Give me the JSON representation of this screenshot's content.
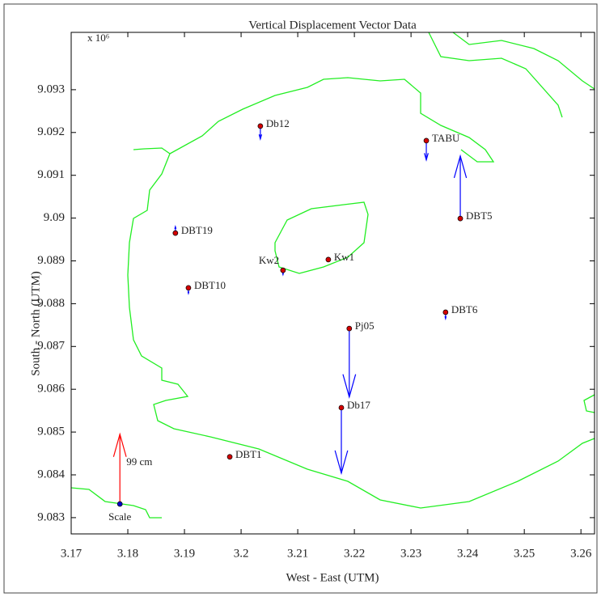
{
  "chart_data": {
    "type": "quiver",
    "title": "Vertical Displacement Vector Data",
    "x_label": "West - East (UTM)",
    "y_label": "South - North (UTM)",
    "y_exponent_label": "x 10⁶",
    "categories": [
      "Db12",
      "TABU",
      "DBT5",
      "DBT19",
      "Kw2",
      "Kw1",
      "DBT10",
      "DBT6",
      "Pj05",
      "Db17",
      "DBT1"
    ],
    "x": [
      3.2034,
      3.2327,
      3.2387,
      3.1884,
      3.2074,
      3.2154,
      3.1907,
      3.2361,
      3.2191,
      3.2177,
      3.198
    ],
    "values": [
      9.09215,
      9.09181,
      9.08999,
      9.08965,
      9.08878,
      9.08903,
      9.08837,
      9.0878,
      9.08742,
      9.08557,
      9.08442
    ],
    "arrows": [
      -0.0003,
      -0.00045,
      0.00146,
      0.00015,
      -0.0001,
      0,
      -0.00013,
      -0.00015,
      -0.0016,
      -0.00153,
      0
    ],
    "marker_color": "#d40000",
    "arrow_color": "#0000ff",
    "scale": {
      "label": "Scale",
      "annotation": "99 cm",
      "x": 3.1786,
      "y": 9.08332,
      "arrow": 0.00163,
      "color": "#0000cc",
      "arrow_color": "#ff0000"
    },
    "xlim": [
      3.17,
      3.2624
    ],
    "ylim": [
      9.08262,
      9.09434
    ],
    "xticks": [
      3.17,
      3.18,
      3.19,
      3.2,
      3.21,
      3.22,
      3.23,
      3.24,
      3.25,
      3.26
    ],
    "yticks": [
      9.083,
      9.084,
      9.085,
      9.086,
      9.087,
      9.088,
      9.089,
      9.09,
      9.091,
      9.092,
      9.093
    ]
  }
}
